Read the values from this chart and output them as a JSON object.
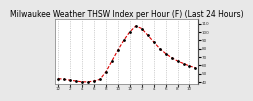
{
  "title": "Milwaukee Weather THSW Index per Hour (F) (Last 24 Hours)",
  "title_fontsize": 5.5,
  "background_color": "#e8e8e8",
  "plot_bg_color": "#ffffff",
  "line_color": "#dd0000",
  "marker_color": "#000000",
  "grid_color": "#aaaaaa",
  "ylabel_right": [
    "110",
    "100",
    "90",
    "80",
    "70",
    "60",
    "50",
    "40"
  ],
  "ylim": [
    38,
    115
  ],
  "yticks": [
    40,
    50,
    60,
    70,
    80,
    90,
    100,
    110
  ],
  "hours": [
    0,
    1,
    2,
    3,
    4,
    5,
    6,
    7,
    8,
    9,
    10,
    11,
    12,
    13,
    14,
    15,
    16,
    17,
    18,
    19,
    20,
    21,
    22,
    23
  ],
  "values": [
    44,
    43,
    42,
    41,
    40,
    40,
    41,
    43,
    52,
    65,
    78,
    90,
    100,
    107,
    104,
    96,
    88,
    80,
    74,
    69,
    65,
    62,
    59,
    57
  ],
  "xlabel_ticks": [
    0,
    2,
    4,
    6,
    8,
    10,
    12,
    14,
    16,
    18,
    20,
    22
  ],
  "xlabel_labels": [
    "12",
    "2",
    "4",
    "6",
    "8",
    "10",
    "12",
    "2",
    "4",
    "6",
    "8",
    "10"
  ],
  "vgrid_positions": [
    0,
    2,
    4,
    6,
    8,
    10,
    12,
    14,
    16,
    18,
    20,
    22
  ]
}
